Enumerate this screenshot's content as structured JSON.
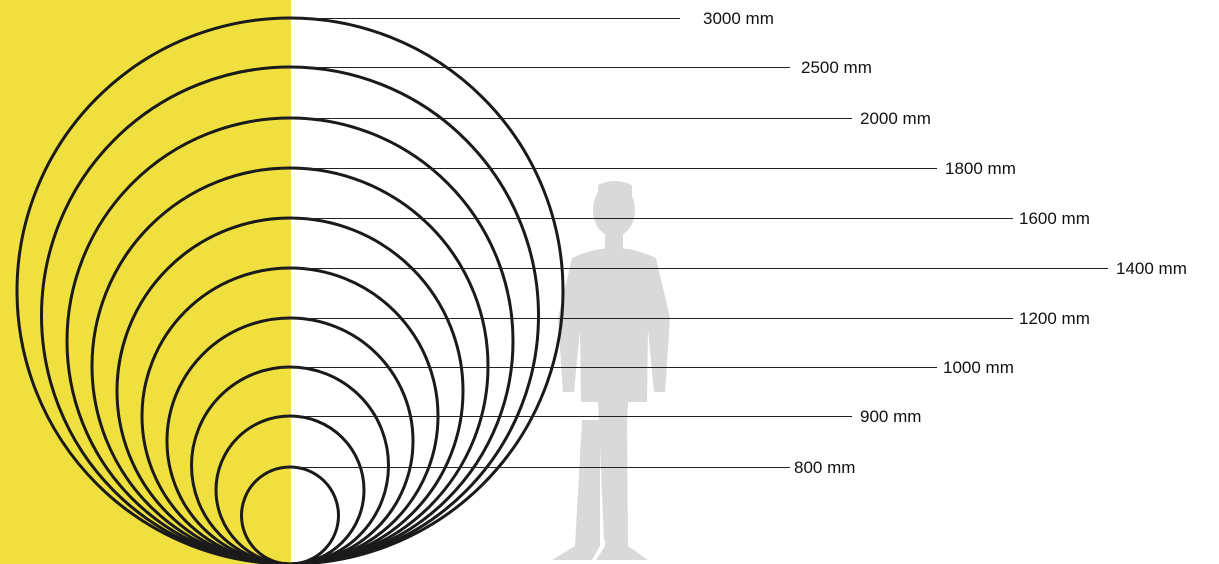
{
  "colors": {
    "background_left": "#f0e03f",
    "background_right": "#ffffff",
    "circle_stroke": "#1a1a1a",
    "leader_line": "#222222",
    "silhouette": "#d9d9d9",
    "label_text": "#111111"
  },
  "figure": {
    "icon": "standing-person-silhouette-icon"
  },
  "sizes": [
    {
      "diameter_mm": 3000,
      "label": "3000 mm"
    },
    {
      "diameter_mm": 2500,
      "label": "2500 mm"
    },
    {
      "diameter_mm": 2000,
      "label": "2000 mm"
    },
    {
      "diameter_mm": 1800,
      "label": "1800 mm"
    },
    {
      "diameter_mm": 1600,
      "label": "1600 mm"
    },
    {
      "diameter_mm": 1400,
      "label": "1400 mm"
    },
    {
      "diameter_mm": 1200,
      "label": "1200 mm"
    },
    {
      "diameter_mm": 1000,
      "label": "1000 mm"
    },
    {
      "diameter_mm": 900,
      "label": "900 mm"
    },
    {
      "diameter_mm": 800,
      "label": "800 mm"
    }
  ]
}
